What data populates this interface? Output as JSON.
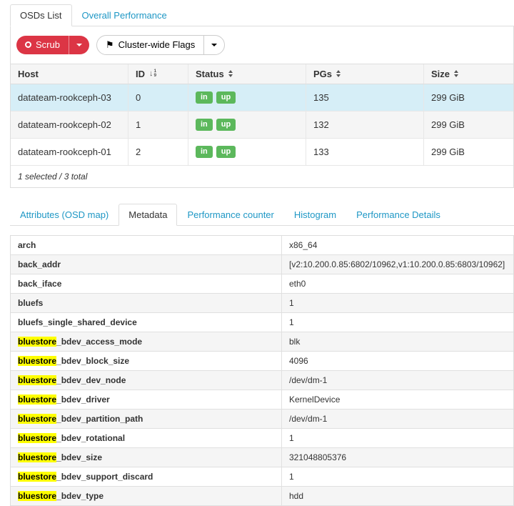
{
  "tabs_top": {
    "items": [
      {
        "label": "OSDs List",
        "active": true
      },
      {
        "label": "Overall Performance",
        "active": false
      }
    ]
  },
  "toolbar": {
    "scrub_label": "Scrub",
    "flags_label": "Cluster-wide Flags"
  },
  "osd_table": {
    "columns": [
      {
        "label": "Host",
        "sort": "none"
      },
      {
        "label": "ID",
        "sort": "numeric"
      },
      {
        "label": "Status",
        "sort": "carets"
      },
      {
        "label": "PGs",
        "sort": "carets"
      },
      {
        "label": "Size",
        "sort": "carets"
      }
    ],
    "rows": [
      {
        "host": "datateam-rookceph-03",
        "id": "0",
        "status": [
          "in",
          "up"
        ],
        "pgs": "135",
        "size": "299 GiB",
        "selected": true
      },
      {
        "host": "datateam-rookceph-02",
        "id": "1",
        "status": [
          "in",
          "up"
        ],
        "pgs": "132",
        "size": "299 GiB",
        "selected": false
      },
      {
        "host": "datateam-rookceph-01",
        "id": "2",
        "status": [
          "in",
          "up"
        ],
        "pgs": "133",
        "size": "299 GiB",
        "selected": false
      }
    ],
    "footer": "1 selected / 3 total"
  },
  "tabs_detail": {
    "items": [
      {
        "label": "Attributes (OSD map)",
        "active": false
      },
      {
        "label": "Metadata",
        "active": true
      },
      {
        "label": "Performance counter",
        "active": false
      },
      {
        "label": "Histogram",
        "active": false
      },
      {
        "label": "Performance Details",
        "active": false
      }
    ]
  },
  "metadata": {
    "highlight": "bluestore",
    "rows": [
      {
        "key": "arch",
        "value": "x86_64"
      },
      {
        "key": "back_addr",
        "value": "[v2:10.200.0.85:6802/10962,v1:10.200.0.85:6803/10962]"
      },
      {
        "key": "back_iface",
        "value": "eth0"
      },
      {
        "key": "bluefs",
        "value": "1"
      },
      {
        "key": "bluefs_single_shared_device",
        "value": "1"
      },
      {
        "key": "bluestore_bdev_access_mode",
        "value": "blk"
      },
      {
        "key": "bluestore_bdev_block_size",
        "value": "4096"
      },
      {
        "key": "bluestore_bdev_dev_node",
        "value": "/dev/dm-1"
      },
      {
        "key": "bluestore_bdev_driver",
        "value": "KernelDevice"
      },
      {
        "key": "bluestore_bdev_partition_path",
        "value": "/dev/dm-1"
      },
      {
        "key": "bluestore_bdev_rotational",
        "value": "1"
      },
      {
        "key": "bluestore_bdev_size",
        "value": "321048805376"
      },
      {
        "key": "bluestore_bdev_support_discard",
        "value": "1"
      },
      {
        "key": "bluestore_bdev_type",
        "value": "hdd"
      }
    ]
  },
  "colors": {
    "accent": "#1e97c5",
    "danger": "#dc3545",
    "badge": "#5cb85c",
    "selected_row": "#d6eef7",
    "highlight": "#ffff00"
  }
}
